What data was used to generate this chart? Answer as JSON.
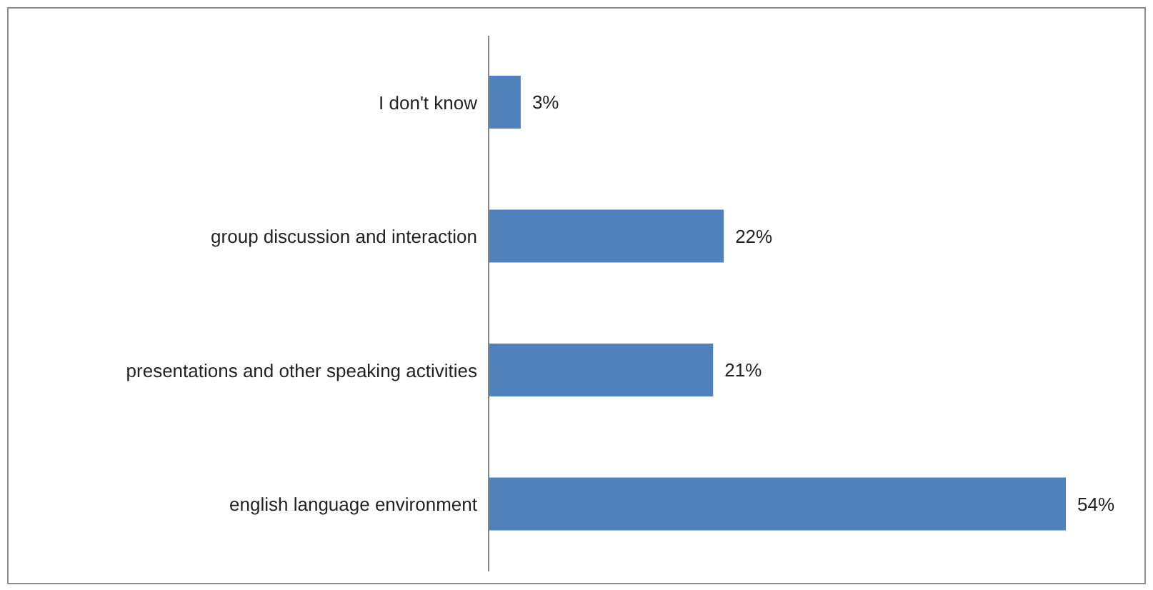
{
  "chart_data": {
    "type": "bar",
    "orientation": "horizontal",
    "categories": [
      "I don't know",
      "group discussion and interaction",
      "presentations and other speaking activities",
      "english language environment"
    ],
    "values": [
      3,
      22,
      21,
      54
    ],
    "color": "#4f81bd",
    "value_labels": [
      "3%",
      "22%",
      "21%",
      "54%"
    ],
    "grid": false,
    "legend": false
  }
}
